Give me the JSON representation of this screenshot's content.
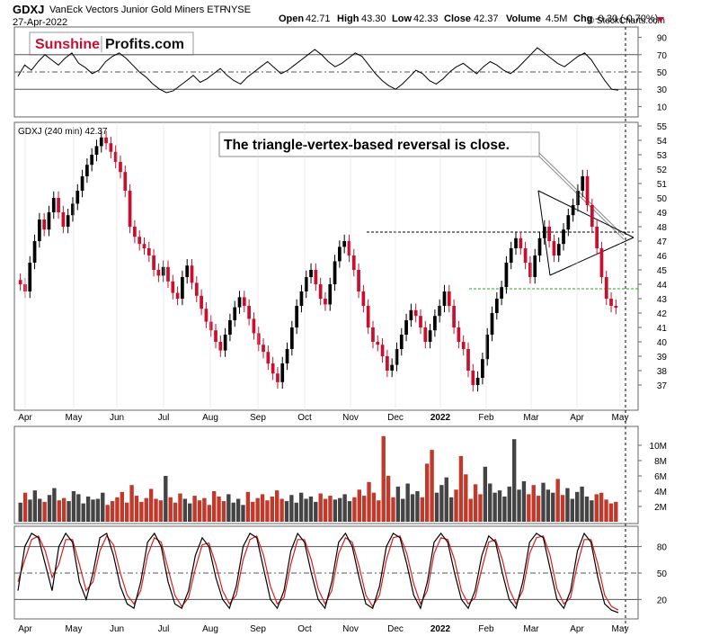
{
  "header": {
    "symbol": "GDXJ",
    "name": "VanEck Vectors Junior Gold Miners ETF",
    "exchange": "NYSE",
    "date": "27-Apr-2022",
    "open_label": "Open",
    "open": "42.71",
    "high_label": "High",
    "high": "43.30",
    "low_label": "Low",
    "low": "42.33",
    "close_label": "Close",
    "close": "42.37",
    "volume_label": "Volume",
    "volume": "4.5M",
    "chg_label": "Chg",
    "chg": "-0.30 (-0.70%)",
    "watermark": "© StockCharts.com"
  },
  "logo": {
    "part1": "Sunshine",
    "part2": "Profits.com"
  },
  "colors": {
    "up": "#000000",
    "down": "#c8102e",
    "logo_red": "#c8102e",
    "signal": "#e01b1b",
    "support": "#22aa22"
  },
  "chart_data": [
    {
      "type": "line",
      "panel": "rsi",
      "ylim": [
        0,
        100
      ],
      "yticks": [
        10,
        30,
        50,
        70,
        90
      ],
      "reference_lines": [
        30,
        50,
        70
      ],
      "series": [
        {
          "values": [
            45,
            58,
            52,
            62,
            70,
            64,
            58,
            66,
            72,
            60,
            55,
            48,
            52,
            62,
            68,
            72,
            66,
            58,
            50,
            44,
            36,
            30,
            26,
            28,
            34,
            40,
            46,
            38,
            42,
            48,
            54,
            46,
            40,
            36,
            44,
            50,
            56,
            62,
            55,
            48,
            52,
            58,
            64,
            70,
            76,
            70,
            62,
            56,
            60,
            66,
            72,
            68,
            58,
            48,
            40,
            34,
            30,
            36,
            44,
            52,
            48,
            40,
            36,
            42,
            50,
            56,
            60,
            54,
            48,
            56,
            62,
            58,
            52,
            48,
            54,
            62,
            70,
            78,
            72,
            66,
            60,
            56,
            62,
            68,
            72,
            64,
            52,
            40,
            30,
            29
          ]
        }
      ]
    },
    {
      "type": "candlestick",
      "panel": "price",
      "legend": "GDXJ (240 min) 42.37",
      "ylim": [
        35.5,
        55
      ],
      "yticks": [
        37,
        38,
        39,
        40,
        41,
        42,
        43,
        44,
        45,
        46,
        47,
        48,
        49,
        50,
        51,
        52,
        53,
        54,
        55
      ],
      "annotation": "The triangle-vertex-based reversal is close.",
      "x_tick_labels": [
        "Apr",
        "May",
        "Jun",
        "Jul",
        "Aug",
        "Sep",
        "Oct",
        "Nov",
        "Dec",
        "2022",
        "Feb",
        "Mar",
        "Apr",
        "May"
      ],
      "closes": [
        44.0,
        43.5,
        45.5,
        47.0,
        48.5,
        47.8,
        49.0,
        50.0,
        49.0,
        48.0,
        48.8,
        49.6,
        50.5,
        51.5,
        52.3,
        53.0,
        53.6,
        54.2,
        53.8,
        53.2,
        52.5,
        51.8,
        50.5,
        48.0,
        47.3,
        46.8,
        46.5,
        46.0,
        45.0,
        44.6,
        45.2,
        44.2,
        43.4,
        43.0,
        44.5,
        45.3,
        44.1,
        43.2,
        42.3,
        41.4,
        40.8,
        40.0,
        39.4,
        40.5,
        41.5,
        42.4,
        43.1,
        42.5,
        41.6,
        40.6,
        39.8,
        39.3,
        38.5,
        37.8,
        37.2,
        38.5,
        39.5,
        41.0,
        42.5,
        43.5,
        44.5,
        45.0,
        44.0,
        43.0,
        42.6,
        44.0,
        45.6,
        46.6,
        47.0,
        46.0,
        45.0,
        43.5,
        42.5,
        41.0,
        40.0,
        39.8,
        39.0,
        38.0,
        38.4,
        39.5,
        40.5,
        41.5,
        42.2,
        41.8,
        41.0,
        40.0,
        40.8,
        41.8,
        42.5,
        43.5,
        42.5,
        41.0,
        40.0,
        39.5,
        38.0,
        37.0,
        37.5,
        38.8,
        40.5,
        42.0,
        43.0,
        43.8,
        45.5,
        46.5,
        47.2,
        46.5,
        45.5,
        44.5,
        46.0,
        47.2,
        48.0,
        47.0,
        46.0,
        46.8,
        47.8,
        48.8,
        49.5,
        50.5,
        51.5,
        49.5,
        48.0,
        46.5,
        44.5,
        43.0,
        42.5,
        42.37
      ]
    },
    {
      "type": "bar",
      "panel": "volume",
      "yticks_label": [
        "2M",
        "4M",
        "6M",
        "8M",
        "10M"
      ],
      "yticks": [
        2,
        4,
        6,
        8,
        10
      ],
      "ylim": [
        0,
        12
      ],
      "values": [
        2.5,
        3.8,
        2.9,
        4.1,
        3.0,
        2.6,
        3.5,
        4.4,
        2.8,
        3.1,
        2.7,
        4.0,
        3.6,
        2.4,
        3.3,
        2.9,
        3.0,
        3.8,
        2.2,
        2.7,
        3.2,
        3.9,
        2.5,
        4.8,
        3.4,
        2.6,
        3.1,
        4.3,
        3.0,
        2.8,
        6.0,
        3.2,
        2.5,
        3.7,
        3.0,
        2.4,
        3.4,
        2.8,
        3.1,
        2.2,
        4.0,
        3.3,
        2.7,
        3.6,
        2.5,
        3.0,
        2.2,
        3.9,
        2.6,
        3.1,
        3.6,
        2.8,
        3.3,
        4.1,
        3.0,
        2.7,
        3.5,
        2.5,
        3.8,
        3.0,
        3.3,
        2.6,
        3.7,
        3.0,
        3.4,
        2.9,
        3.1,
        3.6,
        2.7,
        3.2,
        4.2,
        3.4,
        5.2,
        3.8,
        2.8,
        11.2,
        6.0,
        3.2,
        4.6,
        3.0,
        5.0,
        3.6,
        4.0,
        3.2,
        7.6,
        9.4,
        3.8,
        4.8,
        5.8,
        3.2,
        4.2,
        8.6,
        6.2,
        3.0,
        4.9,
        3.6,
        7.2,
        5.0,
        3.8,
        4.1,
        3.3,
        4.6,
        10.8,
        4.2,
        5.3,
        3.6,
        4.8,
        3.4,
        5.1,
        4.2,
        3.8,
        5.6,
        3.5,
        4.4,
        3.0,
        3.9,
        4.6,
        3.3,
        2.8,
        3.6,
        3.8,
        2.9,
        2.4,
        2.6
      ]
    },
    {
      "type": "line",
      "panel": "stochastic",
      "ylim": [
        0,
        100
      ],
      "yticks": [
        20,
        50,
        80
      ],
      "reference_lines": [
        20,
        50,
        80
      ],
      "series": [
        {
          "values": [
            30,
            80,
            95,
            90,
            60,
            30,
            80,
            95,
            85,
            40,
            20,
            50,
            90,
            95,
            70,
            35,
            15,
            10,
            40,
            85,
            95,
            80,
            40,
            15,
            10,
            30,
            70,
            90,
            80,
            45,
            20,
            10,
            35,
            80,
            95,
            90,
            55,
            20,
            10,
            30,
            75,
            95,
            85,
            50,
            20,
            10,
            40,
            85,
            95,
            80,
            45,
            15,
            10,
            35,
            80,
            95,
            90,
            60,
            25,
            10,
            40,
            85,
            95,
            85,
            50,
            20,
            10,
            30,
            70,
            92,
            85,
            50,
            20,
            10,
            40,
            85,
            95,
            90,
            55,
            20,
            10,
            30,
            75,
            95,
            85,
            45,
            15,
            8,
            5
          ]
        },
        {
          "values": [
            40,
            65,
            88,
            92,
            75,
            45,
            60,
            88,
            88,
            60,
            30,
            40,
            75,
            92,
            82,
            50,
            25,
            15,
            30,
            70,
            90,
            85,
            55,
            25,
            12,
            22,
            55,
            82,
            84,
            60,
            30,
            15,
            25,
            65,
            88,
            92,
            70,
            35,
            15,
            22,
            60,
            88,
            88,
            65,
            32,
            15,
            30,
            72,
            90,
            85,
            58,
            25,
            12,
            25,
            65,
            90,
            92,
            72,
            38,
            15,
            30,
            72,
            90,
            88,
            65,
            30,
            15,
            22,
            55,
            85,
            88,
            65,
            32,
            15,
            30,
            72,
            90,
            92,
            70,
            32,
            15,
            22,
            60,
            88,
            88,
            60,
            25,
            12,
            8
          ]
        }
      ]
    }
  ]
}
